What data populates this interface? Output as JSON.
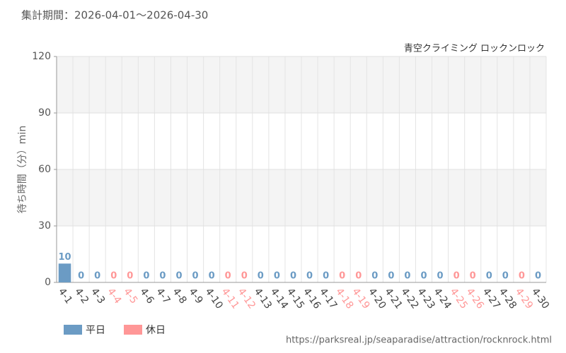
{
  "chart_data": {
    "type": "bar",
    "title": "集計期間：2026-04-01～2026-04-30",
    "subtitle": "青空クライミング ロックンロック",
    "y_label": "待ち時間（分）min",
    "source": "https://parksreal.jp/seaparadise/attraction/rocknrock.html",
    "categories": [
      "4-1",
      "4-2",
      "4-3",
      "4-4",
      "4-5",
      "4-6",
      "4-7",
      "4-8",
      "4-9",
      "4-10",
      "4-11",
      "4-12",
      "4-13",
      "4-14",
      "4-15",
      "4-16",
      "4-17",
      "4-18",
      "4-19",
      "4-20",
      "4-21",
      "4-22",
      "4-23",
      "4-24",
      "4-25",
      "4-26",
      "4-27",
      "4-28",
      "4-29",
      "4-30"
    ],
    "series": [
      {
        "name": "平日",
        "color": "#6b9bc4",
        "values": [
          10,
          0,
          0,
          null,
          null,
          0,
          0,
          0,
          0,
          0,
          null,
          null,
          0,
          0,
          0,
          0,
          0,
          null,
          null,
          0,
          0,
          0,
          0,
          0,
          null,
          null,
          0,
          0,
          null,
          0
        ]
      },
      {
        "name": "休日",
        "color": "#ff9797",
        "values": [
          null,
          null,
          null,
          0,
          0,
          null,
          null,
          null,
          null,
          null,
          0,
          0,
          null,
          null,
          null,
          null,
          null,
          0,
          0,
          null,
          null,
          null,
          null,
          null,
          0,
          0,
          null,
          null,
          0,
          null
        ]
      }
    ],
    "ylim": [
      0,
      120
    ],
    "yticks": [
      0,
      30,
      60,
      90,
      120
    ],
    "grid": true
  }
}
